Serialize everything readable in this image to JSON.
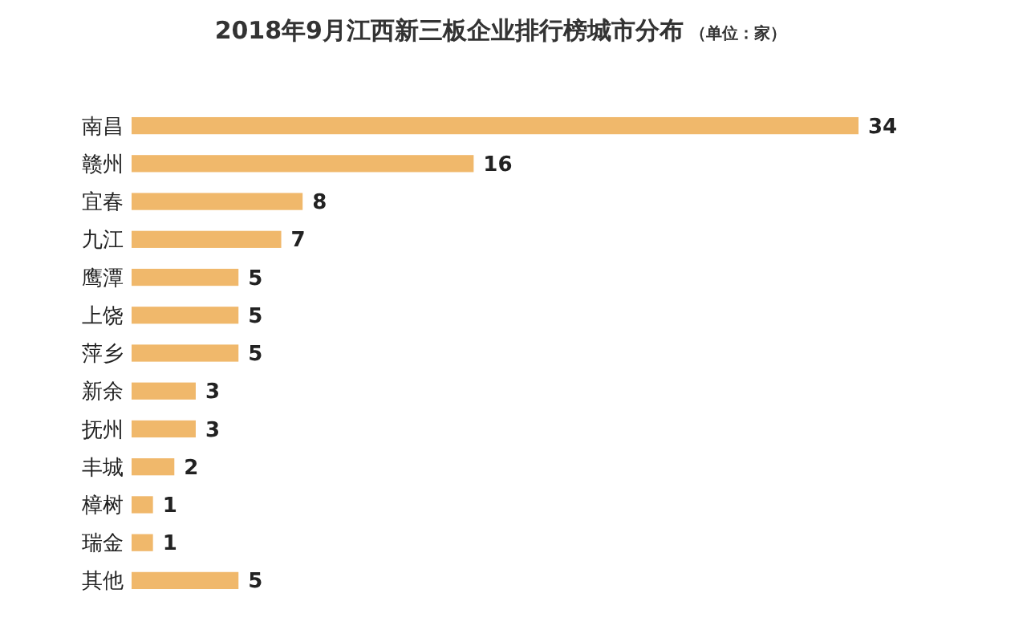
{
  "chart_data": {
    "type": "bar",
    "orientation": "horizontal",
    "title": "2018年9月江西新三板企业排行榜城市分布",
    "subtitle": "（单位：家）",
    "categories": [
      "南昌",
      "赣州",
      "宜春",
      "九江",
      "鹰潭",
      "上饶",
      "萍乡",
      "新余",
      "抚州",
      "丰城",
      "樟树",
      "瑞金",
      "其他"
    ],
    "values": [
      34,
      16,
      8,
      7,
      5,
      5,
      5,
      3,
      3,
      2,
      1,
      1,
      5
    ],
    "color": "#f0b86b",
    "data_labels": true
  }
}
